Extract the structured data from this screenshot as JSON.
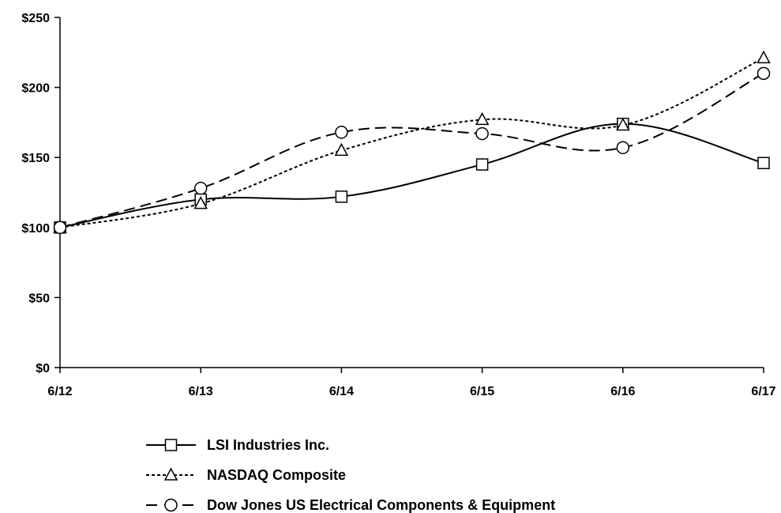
{
  "chart_data": {
    "type": "line",
    "title": "",
    "xlabel": "",
    "ylabel": "",
    "categories": [
      "6/12",
      "6/13",
      "6/14",
      "6/15",
      "6/16",
      "6/17"
    ],
    "ylim": [
      0,
      250
    ],
    "yticks": [
      0,
      50,
      100,
      150,
      200,
      250
    ],
    "ytick_labels": [
      "$0",
      "$50",
      "$100",
      "$150",
      "$200",
      "$250"
    ],
    "grid": false,
    "legend_position": "bottom",
    "series": [
      {
        "name": "LSI Industries Inc.",
        "values": [
          100,
          120,
          122,
          145,
          174,
          146
        ],
        "marker": "square",
        "dash": "solid",
        "color": "#000000"
      },
      {
        "name": "NASDAQ Composite",
        "values": [
          100,
          117,
          155,
          177,
          173,
          221
        ],
        "marker": "triangle",
        "dash": "short-dash",
        "color": "#000000"
      },
      {
        "name": "Dow Jones US Electrical Components & Equipment",
        "values": [
          100,
          128,
          168,
          167,
          157,
          210
        ],
        "marker": "circle",
        "dash": "long-dash",
        "color": "#000000"
      }
    ]
  }
}
